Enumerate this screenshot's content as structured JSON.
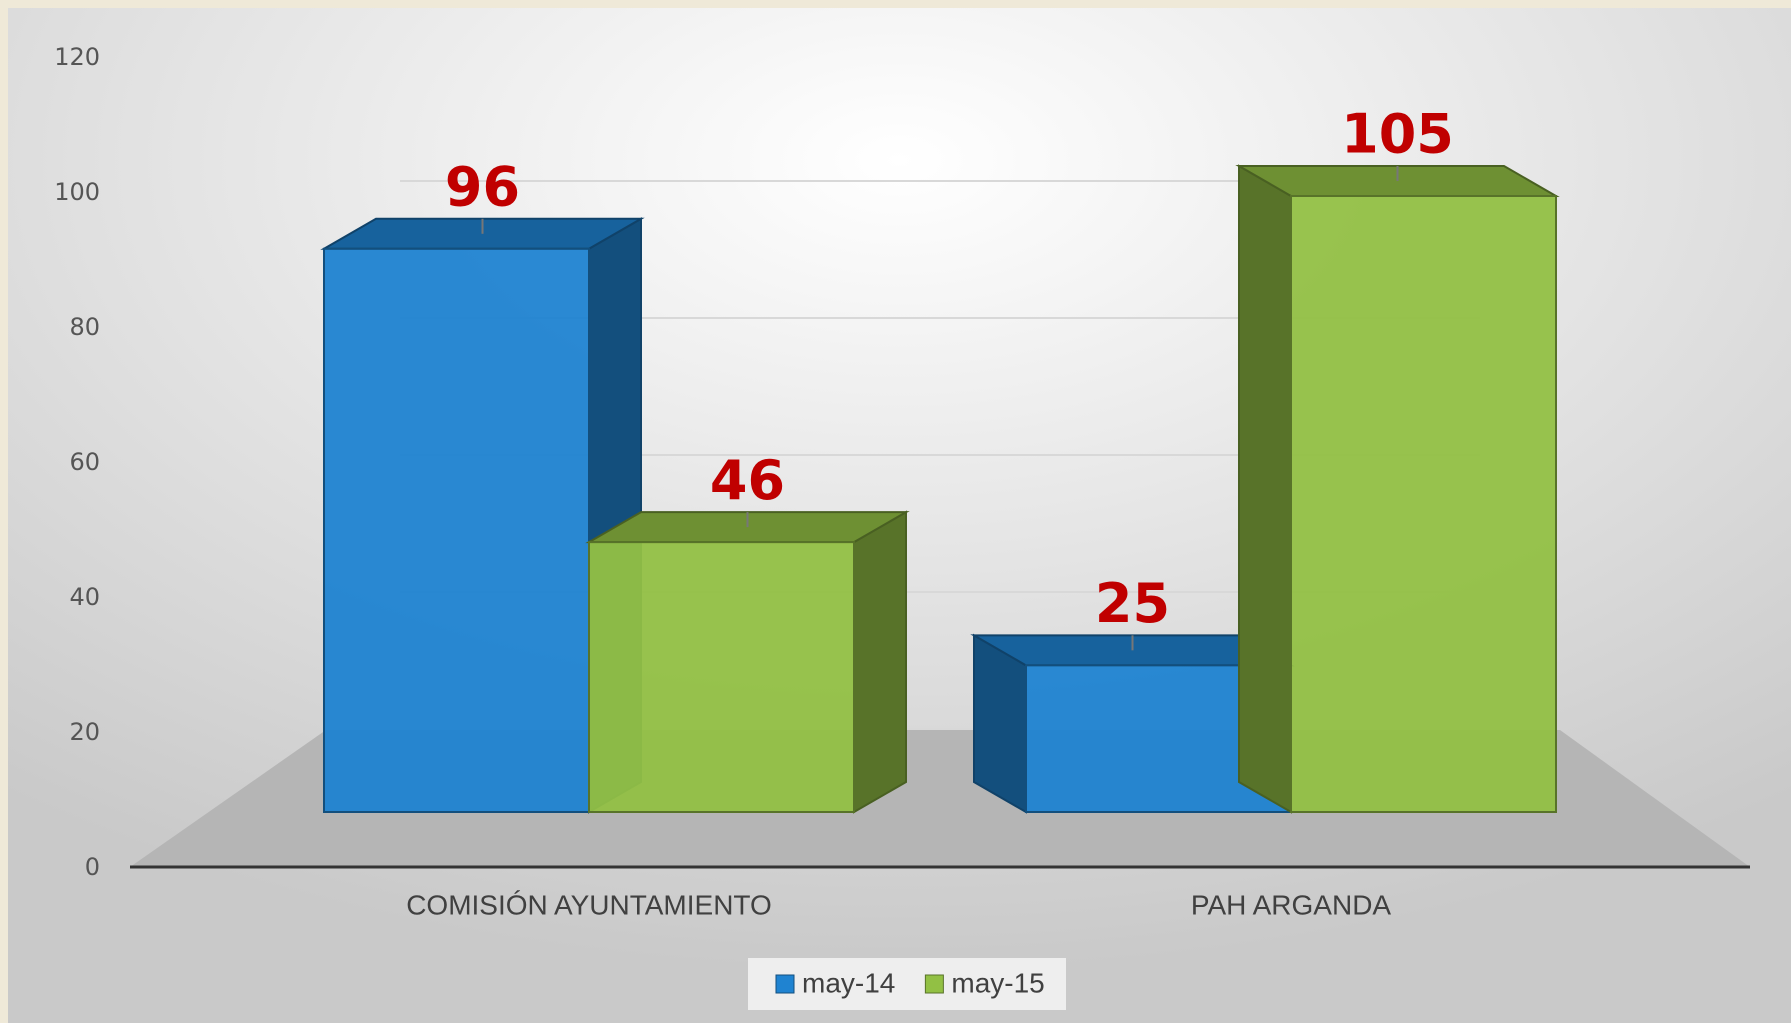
{
  "chart_data": {
    "type": "bar3d",
    "categories": [
      "COMISIÓN AYUNTAMIENTO",
      "PAH ARGANDA"
    ],
    "series": [
      {
        "name": "may-14",
        "color": "#1f83d1",
        "values": [
          96,
          25
        ]
      },
      {
        "name": "may-15",
        "color": "#92c044",
        "values": [
          46,
          105
        ]
      }
    ],
    "ylim": [
      0,
      120
    ],
    "yticks": [
      0,
      20,
      40,
      60,
      80,
      100,
      120
    ],
    "grid": true,
    "legend": "bottom"
  }
}
